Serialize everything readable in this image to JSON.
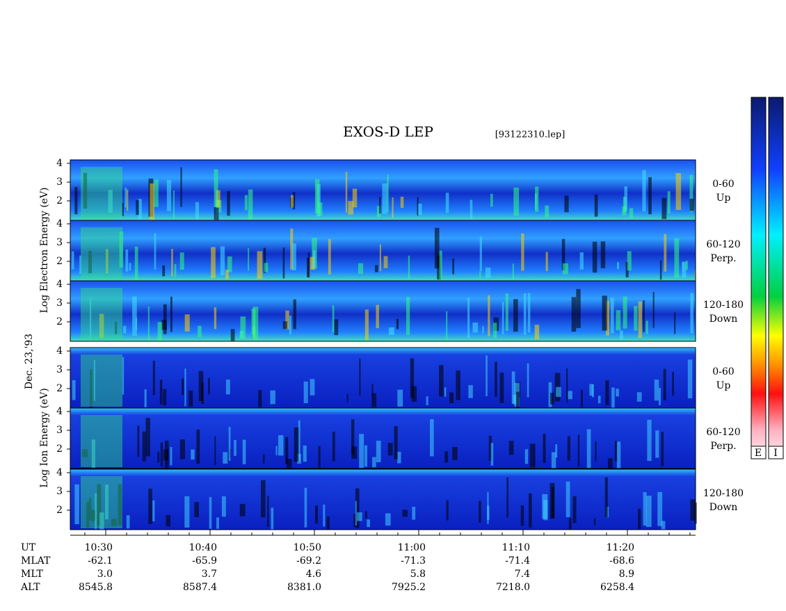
{
  "title": "EXOS-D LEP",
  "file": "[93122310.lep]",
  "date": "Dec. 23,'93",
  "electron_axis_label": "Log Electron Energy (eV)",
  "ion_axis_label": "Log Ion Energy (eV)",
  "energy_ticks": [
    "4",
    "3",
    "2"
  ],
  "panels": [
    {
      "angle": "0-60",
      "direction": "Up"
    },
    {
      "angle": "60-120",
      "direction": "Perp."
    },
    {
      "angle": "120-180",
      "direction": "Down"
    },
    {
      "angle": "0-60",
      "direction": "Up"
    },
    {
      "angle": "60-120",
      "direction": "Perp."
    },
    {
      "angle": "120-180",
      "direction": "Down"
    }
  ],
  "colorbar_labels": [
    "E",
    "I"
  ],
  "footer": [
    {
      "label": "UT",
      "values": [
        "10:30",
        "10:40",
        "10:50",
        "11:00",
        "11:10",
        "11:20"
      ]
    },
    {
      "label": "MLAT",
      "values": [
        "-62.1",
        "-65.9",
        "-69.2",
        "-71.3",
        "-71.4",
        "-68.6"
      ]
    },
    {
      "label": "MLT",
      "values": [
        "3.0",
        "3.7",
        "4.6",
        "5.8",
        "7.4",
        "8.9"
      ]
    },
    {
      "label": "ALT",
      "values": [
        "8545.8",
        "8587.4",
        "8381.0",
        "7925.2",
        "7218.0",
        "6258.4"
      ]
    }
  ]
}
